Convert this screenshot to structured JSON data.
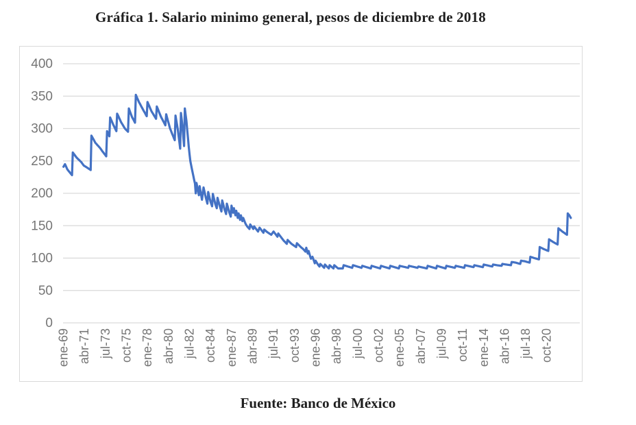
{
  "title": "Gráfica 1. Salario minimo general, pesos de diciembre de 2018",
  "source": "Fuente: Banco de México",
  "chart_data": {
    "type": "line",
    "series_name": "Salario minimo general, pesos de diciembre de 2018",
    "ylim": [
      0,
      400
    ],
    "yticks": [
      0,
      50,
      100,
      150,
      200,
      250,
      300,
      350,
      400
    ],
    "grid": "horizontal-only",
    "legend": "none",
    "line_color": "#4472C4",
    "grid_color": "#d9d9d9",
    "tick_label_color": "#757575",
    "x_axis_note": "monthly categories, month 0 = ene-69; tick labels every 27 months",
    "x_tick_labels": [
      {
        "label": "ene-69",
        "m": 0
      },
      {
        "label": "abr-71",
        "m": 27
      },
      {
        "label": "jul-73",
        "m": 54
      },
      {
        "label": "oct-75",
        "m": 81
      },
      {
        "label": "ene-78",
        "m": 108
      },
      {
        "label": "abr-80",
        "m": 135
      },
      {
        "label": "jul-82",
        "m": 162
      },
      {
        "label": "oct-84",
        "m": 189
      },
      {
        "label": "ene-87",
        "m": 216
      },
      {
        "label": "abr-89",
        "m": 243
      },
      {
        "label": "jul-91",
        "m": 270
      },
      {
        "label": "oct-93",
        "m": 297
      },
      {
        "label": "ene-96",
        "m": 324
      },
      {
        "label": "abr-98",
        "m": 351
      },
      {
        "label": "jul-00",
        "m": 378
      },
      {
        "label": "oct-02",
        "m": 405
      },
      {
        "label": "ene-05",
        "m": 432
      },
      {
        "label": "abr-07",
        "m": 459
      },
      {
        "label": "jul-09",
        "m": 486
      },
      {
        "label": "oct-11",
        "m": 513
      },
      {
        "label": "ene-14",
        "m": 540
      },
      {
        "label": "abr-16",
        "m": 567
      },
      {
        "label": "jul-18",
        "m": 594
      },
      {
        "label": "oct-20",
        "m": 621
      }
    ],
    "axis_months_total": 664,
    "series_note": "monthly real minimum wage read off the plot; [month,value] anchors at each peak/trough, linearly interpolated monthly",
    "anchors": [
      [
        0,
        241
      ],
      [
        2,
        245
      ],
      [
        5,
        237
      ],
      [
        11,
        228
      ],
      [
        12,
        263
      ],
      [
        17,
        255
      ],
      [
        23,
        248
      ],
      [
        26,
        243
      ],
      [
        30,
        240
      ],
      [
        35,
        236
      ],
      [
        36,
        289
      ],
      [
        41,
        278
      ],
      [
        47,
        270
      ],
      [
        50,
        265
      ],
      [
        55,
        257
      ],
      [
        56,
        296
      ],
      [
        59,
        288
      ],
      [
        60,
        317
      ],
      [
        64,
        306
      ],
      [
        68,
        296
      ],
      [
        69,
        323
      ],
      [
        74,
        310
      ],
      [
        79,
        300
      ],
      [
        83,
        295
      ],
      [
        84,
        331
      ],
      [
        88,
        318
      ],
      [
        92,
        309
      ],
      [
        93,
        352
      ],
      [
        97,
        341
      ],
      [
        101,
        332
      ],
      [
        107,
        319
      ],
      [
        108,
        341
      ],
      [
        113,
        327
      ],
      [
        119,
        315
      ],
      [
        120,
        334
      ],
      [
        125,
        319
      ],
      [
        131,
        305
      ],
      [
        132,
        322
      ],
      [
        137,
        300
      ],
      [
        143,
        282
      ],
      [
        144,
        320
      ],
      [
        147,
        298
      ],
      [
        150,
        269
      ],
      [
        151,
        324
      ],
      [
        153,
        302
      ],
      [
        155,
        273
      ],
      [
        156,
        331
      ],
      [
        158,
        312
      ],
      [
        161,
        272
      ],
      [
        163,
        250
      ],
      [
        166,
        232
      ],
      [
        169,
        215
      ],
      [
        170,
        200
      ],
      [
        171,
        216
      ],
      [
        174,
        197
      ],
      [
        175,
        211
      ],
      [
        178,
        190
      ],
      [
        180,
        209
      ],
      [
        183,
        193
      ],
      [
        185,
        184
      ],
      [
        186,
        202
      ],
      [
        189,
        187
      ],
      [
        191,
        180
      ],
      [
        192,
        199
      ],
      [
        195,
        184
      ],
      [
        197,
        177
      ],
      [
        198,
        193
      ],
      [
        201,
        180
      ],
      [
        203,
        172
      ],
      [
        204,
        189
      ],
      [
        207,
        175
      ],
      [
        209,
        168
      ],
      [
        210,
        184
      ],
      [
        213,
        171
      ],
      [
        215,
        164
      ],
      [
        216,
        181
      ],
      [
        218,
        170
      ],
      [
        219,
        177
      ],
      [
        221,
        166
      ],
      [
        222,
        173
      ],
      [
        224,
        162
      ],
      [
        225,
        169
      ],
      [
        227,
        159
      ],
      [
        228,
        166
      ],
      [
        230,
        157
      ],
      [
        231,
        162
      ],
      [
        234,
        153
      ],
      [
        236,
        149
      ],
      [
        239,
        145
      ],
      [
        240,
        152
      ],
      [
        244,
        145
      ],
      [
        245,
        149
      ],
      [
        250,
        141
      ],
      [
        252,
        147
      ],
      [
        257,
        139
      ],
      [
        258,
        144
      ],
      [
        262,
        140
      ],
      [
        267,
        136
      ],
      [
        270,
        141
      ],
      [
        275,
        133
      ],
      [
        276,
        138
      ],
      [
        281,
        130
      ],
      [
        283,
        127
      ],
      [
        287,
        122
      ],
      [
        288,
        128
      ],
      [
        293,
        122
      ],
      [
        299,
        117
      ],
      [
        300,
        123
      ],
      [
        305,
        117
      ],
      [
        308,
        114
      ],
      [
        311,
        110
      ],
      [
        312,
        116
      ],
      [
        314,
        107
      ],
      [
        315,
        111
      ],
      [
        318,
        99
      ],
      [
        320,
        102
      ],
      [
        323,
        92
      ],
      [
        324,
        96
      ],
      [
        327,
        90
      ],
      [
        329,
        87
      ],
      [
        330,
        91
      ],
      [
        335,
        85
      ],
      [
        336,
        90
      ],
      [
        341,
        84
      ],
      [
        342,
        89
      ],
      [
        347,
        84
      ],
      [
        348,
        89
      ],
      [
        353,
        84
      ],
      [
        359,
        84
      ],
      [
        360,
        89
      ],
      [
        371,
        85
      ],
      [
        372,
        89
      ],
      [
        383,
        85
      ],
      [
        384,
        88
      ],
      [
        395,
        84
      ],
      [
        396,
        88
      ],
      [
        407,
        84
      ],
      [
        408,
        88
      ],
      [
        419,
        84
      ],
      [
        420,
        88
      ],
      [
        431,
        84
      ],
      [
        432,
        88
      ],
      [
        443,
        85
      ],
      [
        444,
        88
      ],
      [
        455,
        85
      ],
      [
        456,
        87
      ],
      [
        467,
        84
      ],
      [
        468,
        88
      ],
      [
        479,
        84
      ],
      [
        480,
        88
      ],
      [
        491,
        84
      ],
      [
        492,
        88
      ],
      [
        503,
        85
      ],
      [
        504,
        88
      ],
      [
        515,
        85
      ],
      [
        516,
        89
      ],
      [
        527,
        86
      ],
      [
        528,
        89
      ],
      [
        539,
        86
      ],
      [
        540,
        90
      ],
      [
        551,
        87
      ],
      [
        552,
        90
      ],
      [
        557,
        89
      ],
      [
        563,
        88
      ],
      [
        564,
        91
      ],
      [
        569,
        90
      ],
      [
        575,
        89
      ],
      [
        576,
        94
      ],
      [
        581,
        93
      ],
      [
        587,
        91
      ],
      [
        588,
        96
      ],
      [
        593,
        95
      ],
      [
        599,
        93
      ],
      [
        600,
        102
      ],
      [
        605,
        100
      ],
      [
        611,
        98
      ],
      [
        612,
        117
      ],
      [
        617,
        114
      ],
      [
        623,
        111
      ],
      [
        624,
        129
      ],
      [
        629,
        125
      ],
      [
        635,
        121
      ],
      [
        636,
        146
      ],
      [
        641,
        141
      ],
      [
        647,
        136
      ],
      [
        648,
        169
      ],
      [
        650,
        166
      ],
      [
        652,
        162
      ]
    ]
  }
}
